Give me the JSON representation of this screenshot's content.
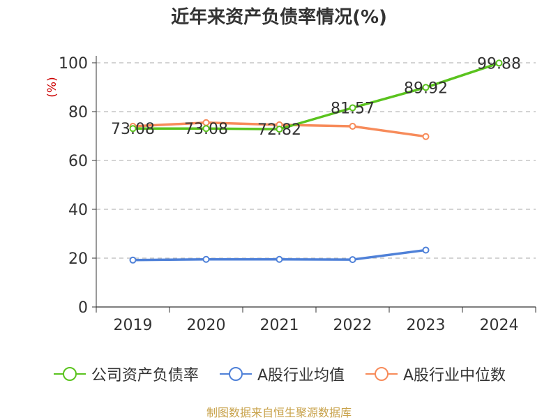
{
  "chart_data": {
    "type": "line",
    "title": "近年来资产负债率情况(%)",
    "ylabel": "(%)",
    "categories": [
      "2019",
      "2020",
      "2021",
      "2022",
      "2023",
      "2024"
    ],
    "y_ticks": [
      "0",
      "20",
      "40",
      "60",
      "80",
      "100"
    ],
    "ylim": [
      0,
      100
    ],
    "grid": true,
    "legend_position": "bottom",
    "series": [
      {
        "name": "公司资产负债率",
        "color": "#5ac31e",
        "values": [
          73.08,
          73.08,
          72.82,
          81.57,
          89.92,
          99.88
        ],
        "labels": [
          "73.08",
          "73.08",
          "72.82",
          "81.57",
          "89.92",
          "99.88"
        ]
      },
      {
        "name": "A股行业均值",
        "color": "#4f81d8",
        "values": [
          19.2,
          19.5,
          19.5,
          19.4,
          23.3,
          null
        ]
      },
      {
        "name": "A股行业中位数",
        "color": "#f78b5a",
        "values": [
          74.0,
          75.5,
          74.6,
          74.0,
          69.8,
          null
        ]
      }
    ]
  },
  "source": "制图数据来自恒生聚源数据库",
  "label_color": "#333333",
  "axis_color": "#333333",
  "ylabel_color": "#cc0000",
  "grid_color": "#bbbbbb"
}
